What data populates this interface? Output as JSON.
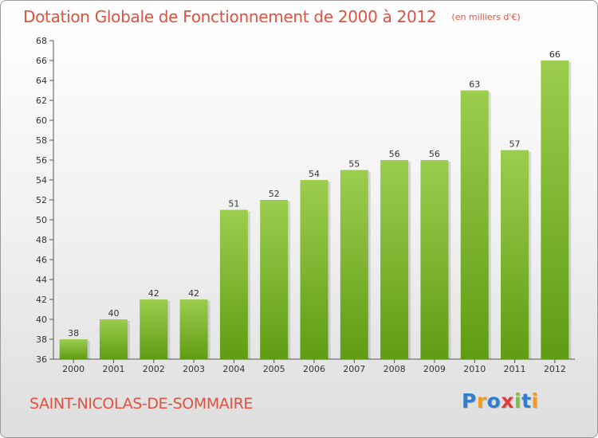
{
  "header": {
    "title": "Dotation Globale de Fonctionnement de 2000 à 2012",
    "unit": "(en milliers d'€)"
  },
  "footer": {
    "commune": "SAINT-NICOLAS-DE-SOMMAIRE",
    "logo": [
      {
        "ch": "P",
        "color": "#2e7fd1"
      },
      {
        "ch": "r",
        "color": "#f29b1e"
      },
      {
        "ch": "o",
        "color": "#2e7fd1"
      },
      {
        "ch": "x",
        "color": "#e03a3a"
      },
      {
        "ch": "i",
        "color": "#7bc043"
      },
      {
        "ch": "t",
        "color": "#2e7fd1"
      },
      {
        "ch": "i",
        "color": "#f29b1e"
      }
    ]
  },
  "colors": {
    "bar_top": "#9ccd4e",
    "bar_bottom": "#5f9c13",
    "axis": "#555555",
    "text": "#333333"
  },
  "chart_data": {
    "type": "bar",
    "title": "Dotation Globale de Fonctionnement de 2000 à 2012",
    "subtitle": "(en milliers d'€)",
    "xlabel": "",
    "ylabel": "",
    "categories": [
      "2000",
      "2001",
      "2002",
      "2003",
      "2004",
      "2005",
      "2006",
      "2007",
      "2008",
      "2009",
      "2010",
      "2011",
      "2012"
    ],
    "values": [
      38,
      40,
      42,
      42,
      51,
      52,
      54,
      55,
      56,
      56,
      63,
      57,
      66
    ],
    "ylim": [
      36,
      68
    ],
    "yticks": [
      36,
      38,
      40,
      42,
      44,
      46,
      48,
      50,
      52,
      54,
      56,
      58,
      60,
      62,
      64,
      66,
      68
    ],
    "grid": false,
    "legend": "none",
    "data_labels": true
  }
}
